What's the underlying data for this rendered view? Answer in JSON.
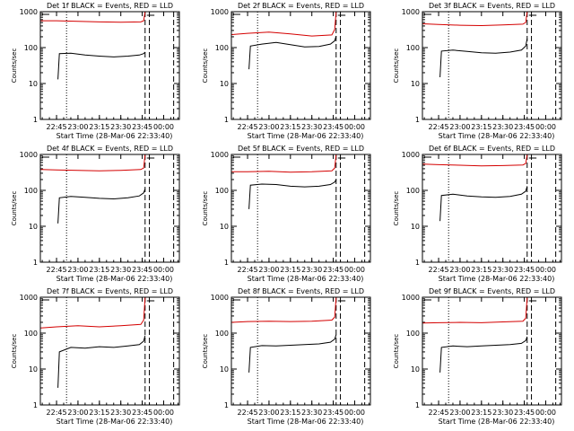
{
  "colors": {
    "events": "#000000",
    "lld": "#d40000",
    "axes": "#000000",
    "background": "#ffffff"
  },
  "chart_data": [
    {
      "type": "line",
      "title": "Det 1f BLACK = Events, RED = LLD",
      "ylabel": "Counts/sec",
      "xlabel": "Start Time (28-Mar-06 22:33:40)",
      "x_ticks": [
        "22:45",
        "23:00",
        "23:15",
        "23:30",
        "23:45",
        "00:00"
      ],
      "y_ticks": [
        "1",
        "10",
        "100",
        "1000"
      ],
      "yscale": "log",
      "ylim": [
        1,
        1000
      ],
      "series": [
        {
          "name": "Events",
          "color": "#000000",
          "x": [
            "22:46",
            "22:47",
            "22:55",
            "23:05",
            "23:15",
            "23:25",
            "23:35",
            "23:43",
            "23:46",
            "23:47"
          ],
          "y": [
            13,
            68,
            70,
            62,
            58,
            55,
            58,
            62,
            68,
            75
          ]
        },
        {
          "name": "LLD",
          "color": "#d40000",
          "x": [
            "22:34",
            "22:45",
            "23:00",
            "23:15",
            "23:30",
            "23:44",
            "23:46",
            "23:47"
          ],
          "y": [
            560,
            560,
            540,
            520,
            510,
            520,
            560,
            1000
          ]
        }
      ]
    },
    {
      "type": "line",
      "title": "Det 2f BLACK = Events, RED = LLD",
      "ylabel": "Counts/sec",
      "xlabel": "Start Time (28-Mar-06 22:33:40)",
      "x_ticks": [
        "22:45",
        "23:00",
        "23:15",
        "23:30",
        "23:45",
        "00:00"
      ],
      "y_ticks": [
        "1",
        "10",
        "100",
        "1000"
      ],
      "yscale": "log",
      "ylim": [
        1,
        1000
      ],
      "series": [
        {
          "name": "Events",
          "color": "#000000",
          "x": [
            "22:46",
            "22:47",
            "22:55",
            "23:05",
            "23:15",
            "23:25",
            "23:35",
            "23:43",
            "23:46",
            "23:47"
          ],
          "y": [
            25,
            110,
            125,
            140,
            120,
            105,
            108,
            125,
            155,
            210
          ]
        },
        {
          "name": "LLD",
          "color": "#d40000",
          "x": [
            "22:34",
            "22:45",
            "23:00",
            "23:15",
            "23:30",
            "23:44",
            "23:46",
            "23:47"
          ],
          "y": [
            230,
            250,
            270,
            240,
            210,
            225,
            320,
            1000
          ]
        }
      ]
    },
    {
      "type": "line",
      "title": "Det 3f BLACK = Events, RED = LLD",
      "ylabel": "Counts/sec",
      "xlabel": "Start Time (28-Mar-06 22:33:40)",
      "x_ticks": [
        "22:45",
        "23:00",
        "23:15",
        "23:30",
        "23:45",
        "00:00"
      ],
      "y_ticks": [
        "1",
        "10",
        "100",
        "1000"
      ],
      "yscale": "log",
      "ylim": [
        1,
        1000
      ],
      "series": [
        {
          "name": "Events",
          "color": "#000000",
          "x": [
            "22:46",
            "22:47",
            "22:55",
            "23:05",
            "23:15",
            "23:25",
            "23:35",
            "23:43",
            "23:46",
            "23:47"
          ],
          "y": [
            15,
            80,
            85,
            78,
            72,
            70,
            75,
            85,
            110,
            180
          ]
        },
        {
          "name": "LLD",
          "color": "#d40000",
          "x": [
            "22:34",
            "22:45",
            "23:00",
            "23:15",
            "23:30",
            "23:44",
            "23:46",
            "23:47"
          ],
          "y": [
            460,
            440,
            420,
            410,
            430,
            450,
            500,
            1000
          ]
        }
      ]
    },
    {
      "type": "line",
      "title": "Det 4f BLACK = Events, RED = LLD",
      "ylabel": "Counts/sec",
      "xlabel": "Start Time (28-Mar-06 22:33:40)",
      "x_ticks": [
        "22:45",
        "23:00",
        "23:15",
        "23:30",
        "23:45",
        "00:00"
      ],
      "y_ticks": [
        "1",
        "10",
        "100",
        "1000"
      ],
      "yscale": "log",
      "ylim": [
        1,
        1000
      ],
      "series": [
        {
          "name": "Events",
          "color": "#000000",
          "x": [
            "22:46",
            "22:47",
            "22:55",
            "23:05",
            "23:15",
            "23:25",
            "23:35",
            "23:43",
            "23:46",
            "23:47"
          ],
          "y": [
            12,
            62,
            68,
            64,
            60,
            58,
            62,
            70,
            85,
            110
          ]
        },
        {
          "name": "LLD",
          "color": "#d40000",
          "x": [
            "22:34",
            "22:45",
            "23:00",
            "23:15",
            "23:30",
            "23:44",
            "23:46",
            "23:47"
          ],
          "y": [
            380,
            370,
            360,
            350,
            360,
            380,
            420,
            1000
          ]
        }
      ]
    },
    {
      "type": "line",
      "title": "Det 5f BLACK = Events, RED = LLD",
      "ylabel": "Counts/sec",
      "xlabel": "Start Time (28-Mar-06 22:33:40)",
      "x_ticks": [
        "22:45",
        "23:00",
        "23:15",
        "23:30",
        "23:45",
        "00:00"
      ],
      "y_ticks": [
        "1",
        "10",
        "100",
        "1000"
      ],
      "yscale": "log",
      "ylim": [
        1,
        1000
      ],
      "series": [
        {
          "name": "Events",
          "color": "#000000",
          "x": [
            "22:46",
            "22:47",
            "22:55",
            "23:05",
            "23:15",
            "23:25",
            "23:35",
            "23:43",
            "23:46",
            "23:47"
          ],
          "y": [
            30,
            140,
            150,
            145,
            130,
            125,
            130,
            145,
            170,
            200
          ]
        },
        {
          "name": "LLD",
          "color": "#d40000",
          "x": [
            "22:34",
            "22:45",
            "23:00",
            "23:15",
            "23:30",
            "23:44",
            "23:46",
            "23:47"
          ],
          "y": [
            330,
            330,
            340,
            320,
            330,
            350,
            420,
            1000
          ]
        }
      ]
    },
    {
      "type": "line",
      "title": "Det 6f BLACK = Events, RED = LLD",
      "ylabel": "Counts/sec",
      "xlabel": "Start Time (28-Mar-06 22:33:40)",
      "x_ticks": [
        "22:45",
        "23:00",
        "23:15",
        "23:30",
        "23:45",
        "00:00"
      ],
      "y_ticks": [
        "1",
        "10",
        "100",
        "1000"
      ],
      "yscale": "log",
      "ylim": [
        1,
        1000
      ],
      "series": [
        {
          "name": "Events",
          "color": "#000000",
          "x": [
            "22:46",
            "22:47",
            "22:55",
            "23:05",
            "23:15",
            "23:25",
            "23:35",
            "23:43",
            "23:46",
            "23:47"
          ],
          "y": [
            14,
            72,
            78,
            70,
            66,
            64,
            68,
            78,
            95,
            130
          ]
        },
        {
          "name": "LLD",
          "color": "#d40000",
          "x": [
            "22:34",
            "22:45",
            "23:00",
            "23:15",
            "23:30",
            "23:44",
            "23:46",
            "23:47"
          ],
          "y": [
            540,
            520,
            500,
            480,
            490,
            510,
            560,
            1000
          ]
        }
      ]
    },
    {
      "type": "line",
      "title": "Det 7f BLACK = Events, RED = LLD",
      "ylabel": "Counts/sec",
      "xlabel": "Start Time (28-Mar-06 22:33:40)",
      "x_ticks": [
        "22:45",
        "23:00",
        "23:15",
        "23:30",
        "23:45",
        "00:00"
      ],
      "y_ticks": [
        "1",
        "10",
        "100",
        "1000"
      ],
      "yscale": "log",
      "ylim": [
        1,
        1000
      ],
      "series": [
        {
          "name": "Events",
          "color": "#000000",
          "x": [
            "22:46",
            "22:47",
            "22:55",
            "23:05",
            "23:15",
            "23:25",
            "23:35",
            "23:43",
            "23:46",
            "23:47"
          ],
          "y": [
            3,
            30,
            40,
            38,
            42,
            40,
            44,
            48,
            60,
            85
          ]
        },
        {
          "name": "LLD",
          "color": "#d40000",
          "x": [
            "22:34",
            "22:45",
            "23:00",
            "23:15",
            "23:30",
            "23:44",
            "23:46",
            "23:47"
          ],
          "y": [
            140,
            150,
            160,
            150,
            160,
            175,
            230,
            1000
          ]
        }
      ]
    },
    {
      "type": "line",
      "title": "Det 8f BLACK = Events, RED = LLD",
      "ylabel": "Counts/sec",
      "xlabel": "Start Time (28-Mar-06 22:33:40)",
      "x_ticks": [
        "22:45",
        "23:00",
        "23:15",
        "23:30",
        "23:45",
        "00:00"
      ],
      "y_ticks": [
        "1",
        "10",
        "100",
        "1000"
      ],
      "yscale": "log",
      "ylim": [
        1,
        1000
      ],
      "series": [
        {
          "name": "Events",
          "color": "#000000",
          "x": [
            "22:46",
            "22:47",
            "22:55",
            "23:05",
            "23:15",
            "23:25",
            "23:35",
            "23:43",
            "23:46",
            "23:47"
          ],
          "y": [
            8,
            40,
            45,
            44,
            46,
            48,
            50,
            56,
            68,
            90
          ]
        },
        {
          "name": "LLD",
          "color": "#d40000",
          "x": [
            "22:34",
            "22:45",
            "23:00",
            "23:15",
            "23:30",
            "23:44",
            "23:46",
            "23:47"
          ],
          "y": [
            200,
            210,
            215,
            210,
            215,
            230,
            280,
            1000
          ]
        }
      ]
    },
    {
      "type": "line",
      "title": "Det 9f BLACK = Events, RED = LLD",
      "ylabel": "Counts/sec",
      "xlabel": "Start Time (28-Mar-06 22:33:40)",
      "x_ticks": [
        "22:45",
        "23:00",
        "23:15",
        "23:30",
        "23:45",
        "00:00"
      ],
      "y_ticks": [
        "1",
        "10",
        "100",
        "1000"
      ],
      "yscale": "log",
      "ylim": [
        1,
        1000
      ],
      "series": [
        {
          "name": "Events",
          "color": "#000000",
          "x": [
            "22:46",
            "22:47",
            "22:55",
            "23:05",
            "23:15",
            "23:25",
            "23:35",
            "23:43",
            "23:46",
            "23:47"
          ],
          "y": [
            8,
            40,
            44,
            42,
            44,
            46,
            48,
            52,
            62,
            80
          ]
        },
        {
          "name": "LLD",
          "color": "#d40000",
          "x": [
            "22:34",
            "22:45",
            "23:00",
            "23:15",
            "23:30",
            "23:44",
            "23:46",
            "23:47"
          ],
          "y": [
            190,
            195,
            200,
            195,
            205,
            215,
            260,
            1000
          ]
        }
      ]
    }
  ]
}
